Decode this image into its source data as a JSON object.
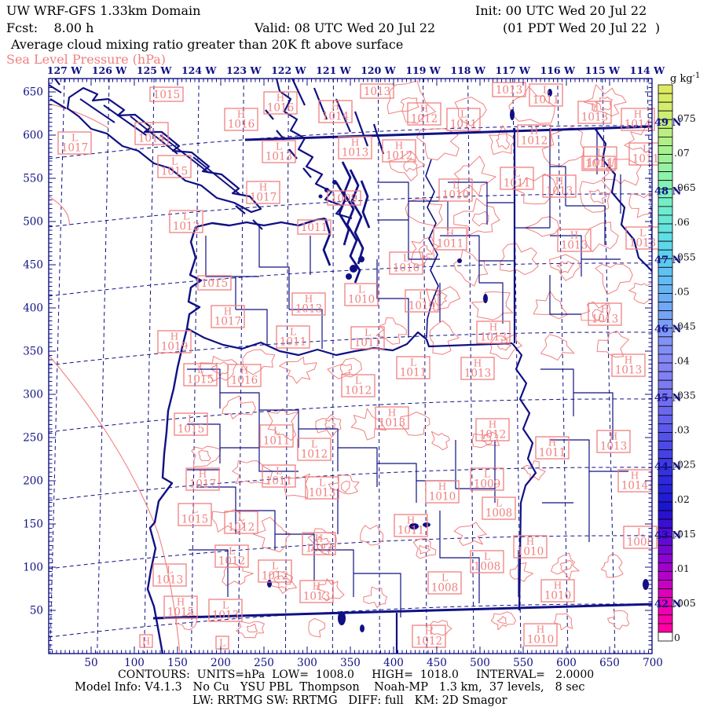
{
  "title_block": {
    "model_line_left": "UW WRF-GFS 1.33km Domain",
    "init_label": "Init: 00 UTC Wed 20 Jul 22",
    "fcst_label": "Fcst:    8.00 h",
    "valid_label": "Valid: 08 UTC Wed 20 Jul 22",
    "valid_local_label": "(01 PDT Wed 20 Jul 22  )",
    "field_line": "Average cloud mixing ratio greater than 20K ft above surface",
    "overlay_line": "Sea Level Pressure (hPa)"
  },
  "footer": {
    "contours_line": "CONTOURS:  UNITS=hPa  LOW=  1008.0     HIGH=  1018.0     INTERVAL=   2.0000",
    "model_info_line": "Model Info: V4.1.3   No Cu   YSU PBL  Thompson    Noah-MP   1.3 km,  37 levels,   8 sec",
    "physics_line": "LW: RRTMG SW: RRTMG   DIFF: full   KM: 2D Smagor"
  },
  "axes": {
    "x_tick_labels": [
      "50",
      "100",
      "150",
      "200",
      "250",
      "300",
      "350",
      "400",
      "450",
      "500",
      "550",
      "600",
      "650",
      "700"
    ],
    "y_tick_labels": [
      "50",
      "100",
      "150",
      "200",
      "250",
      "300",
      "350",
      "400",
      "450",
      "500",
      "550",
      "600",
      "650"
    ],
    "top_longitude_labels": [
      "127 W",
      "126 W",
      "125 W",
      "124 W",
      "123 W",
      "122 W",
      "121 W",
      "120 W",
      "119 W",
      "118 W",
      "117 W",
      "116 W",
      "115 W",
      "114 W"
    ],
    "right_latitude_labels": [
      "49 N",
      "48 N",
      "47 N",
      "46 N",
      "45 N",
      "44 N",
      "43 N",
      "42 N"
    ]
  },
  "colorbar": {
    "unit_label": "g kg",
    "unit_sup": "-1",
    "tick_labels": [
      ".075",
      ".07",
      ".065",
      ".06",
      ".055",
      ".05",
      ".045",
      ".04",
      ".035",
      ".03",
      ".025",
      ".02",
      ".015",
      ".01",
      ".005",
      "0"
    ],
    "gradient_stops": [
      "#dfe960",
      "#c8ef76",
      "#a9f18e",
      "#8af2ad",
      "#6fedcd",
      "#5fdde8",
      "#5ec4f2",
      "#6cadf6",
      "#7d9bf6",
      "#8689f4",
      "#7b79f2",
      "#6462ee",
      "#4a46e8",
      "#2f2ade",
      "#1a14cf",
      "#5a0bd6",
      "#a300cf",
      "#e800b8",
      "#ff00a4"
    ],
    "bottom_cell_color": "#ffffff"
  },
  "colors": {
    "line_navy": "#101084",
    "contour_salmon": "#f08080",
    "text_black": "#000000"
  },
  "map": {
    "pressure_labels": [
      [
        "L",
        "1017",
        95,
        182
      ],
      [
        "L",
        "1014",
        193,
        170
      ],
      [
        "",
        "1015",
        212,
        120
      ],
      [
        "H",
        "1016",
        307,
        152
      ],
      [
        "H",
        "1016",
        357,
        131
      ],
      [
        "H",
        "1014",
        427,
        142
      ],
      [
        "L",
        "1013",
        355,
        193
      ],
      [
        "H",
        "1013",
        452,
        188
      ],
      [
        "",
        "1013",
        480,
        116
      ],
      [
        "H",
        "1012",
        540,
        145
      ],
      [
        "L",
        "1011",
        590,
        152
      ],
      [
        "",
        "1013",
        648,
        114
      ],
      [
        "L",
        "1011",
        695,
        121
      ],
      [
        "H",
        "1013",
        757,
        143
      ],
      [
        "H",
        "1014",
        812,
        152
      ],
      [
        "H",
        "1012",
        680,
        173
      ],
      [
        "H",
        "1012",
        508,
        192
      ],
      [
        "L",
        "1011",
        764,
        201
      ],
      [
        "L",
        "1011",
        822,
        196
      ],
      [
        "",
        "1009",
        438,
        252
      ],
      [
        "L",
        "1015",
        222,
        212
      ],
      [
        "H",
        "1017",
        335,
        245
      ],
      [
        "L",
        "1012",
        237,
        282
      ],
      [
        "",
        "1011",
        400,
        289
      ],
      [
        "L",
        "1010",
        580,
        242
      ],
      [
        "L",
        "1011",
        658,
        227
      ],
      [
        "H",
        "1013",
        712,
        237
      ],
      [
        "",
        "1011",
        762,
        208
      ],
      [
        "H",
        "1011",
        573,
        304
      ],
      [
        "L",
        "1010",
        517,
        335
      ],
      [
        "H",
        "1013",
        731,
        306
      ],
      [
        "L",
        "1013",
        818,
        303
      ],
      [
        "L",
        "1010",
        460,
        375
      ],
      [
        "L",
        "1010",
        537,
        383
      ],
      [
        "L",
        "1011",
        468,
        430
      ],
      [
        "H",
        "1013",
        628,
        423
      ],
      [
        "L",
        "1011",
        526,
        468
      ],
      [
        "H",
        "1013",
        608,
        469
      ],
      [
        "L",
        "1012",
        456,
        491
      ],
      [
        "",
        "1015",
        273,
        360
      ],
      [
        "H",
        "1017",
        290,
        403
      ],
      [
        "H",
        "1019",
        222,
        435
      ],
      [
        "L",
        "1011",
        373,
        429
      ],
      [
        "L",
        "1015",
        255,
        477
      ],
      [
        "H",
        "1016",
        311,
        478
      ],
      [
        "H",
        "1013",
        393,
        387
      ],
      [
        "L",
        "1015",
        243,
        540
      ],
      [
        "L",
        "1011",
        352,
        555
      ],
      [
        "L",
        "1012",
        400,
        572
      ],
      [
        "H",
        "1013",
        770,
        400
      ],
      [
        "H",
        "1012",
        627,
        547
      ],
      [
        "H",
        "1013",
        499,
        532
      ],
      [
        "H",
        "1013",
        800,
        465
      ],
      [
        "H",
        "1011",
        703,
        570
      ],
      [
        "H",
        "1013",
        781,
        562
      ],
      [
        "H",
        "1017",
        258,
        610
      ],
      [
        "L",
        "1011",
        355,
        606
      ],
      [
        "L",
        "1013",
        410,
        621
      ],
      [
        "L",
        "1015",
        248,
        655
      ],
      [
        "L",
        "1012",
        307,
        665
      ],
      [
        "H",
        "1013",
        406,
        692
      ],
      [
        "L",
        "1012",
        295,
        708
      ],
      [
        "L",
        "1012",
        350,
        727
      ],
      [
        "L",
        "1013",
        216,
        732
      ],
      [
        "H",
        "1013",
        403,
        753
      ],
      [
        "H",
        "1015",
        230,
        773
      ],
      [
        "L",
        "1013",
        287,
        777
      ],
      [
        "L",
        "1009",
        620,
        610
      ],
      [
        "H",
        "1010",
        563,
        626
      ],
      [
        "L",
        "1008",
        635,
        647
      ],
      [
        "H",
        "1011",
        523,
        669
      ],
      [
        "H",
        "1014",
        808,
        612
      ],
      [
        "L",
        "1008",
        815,
        684
      ],
      [
        "H",
        "1010",
        675,
        696
      ],
      [
        "L",
        "1008",
        620,
        715
      ],
      [
        "L",
        "1008",
        566,
        742
      ],
      [
        "H",
        "1010",
        710,
        752
      ],
      [
        "H",
        "1012",
        546,
        810
      ],
      [
        "H",
        "1010",
        688,
        808
      ],
      [
        "H",
        "",
        186,
        816
      ],
      [
        "L",
        "",
        283,
        818
      ]
    ]
  }
}
